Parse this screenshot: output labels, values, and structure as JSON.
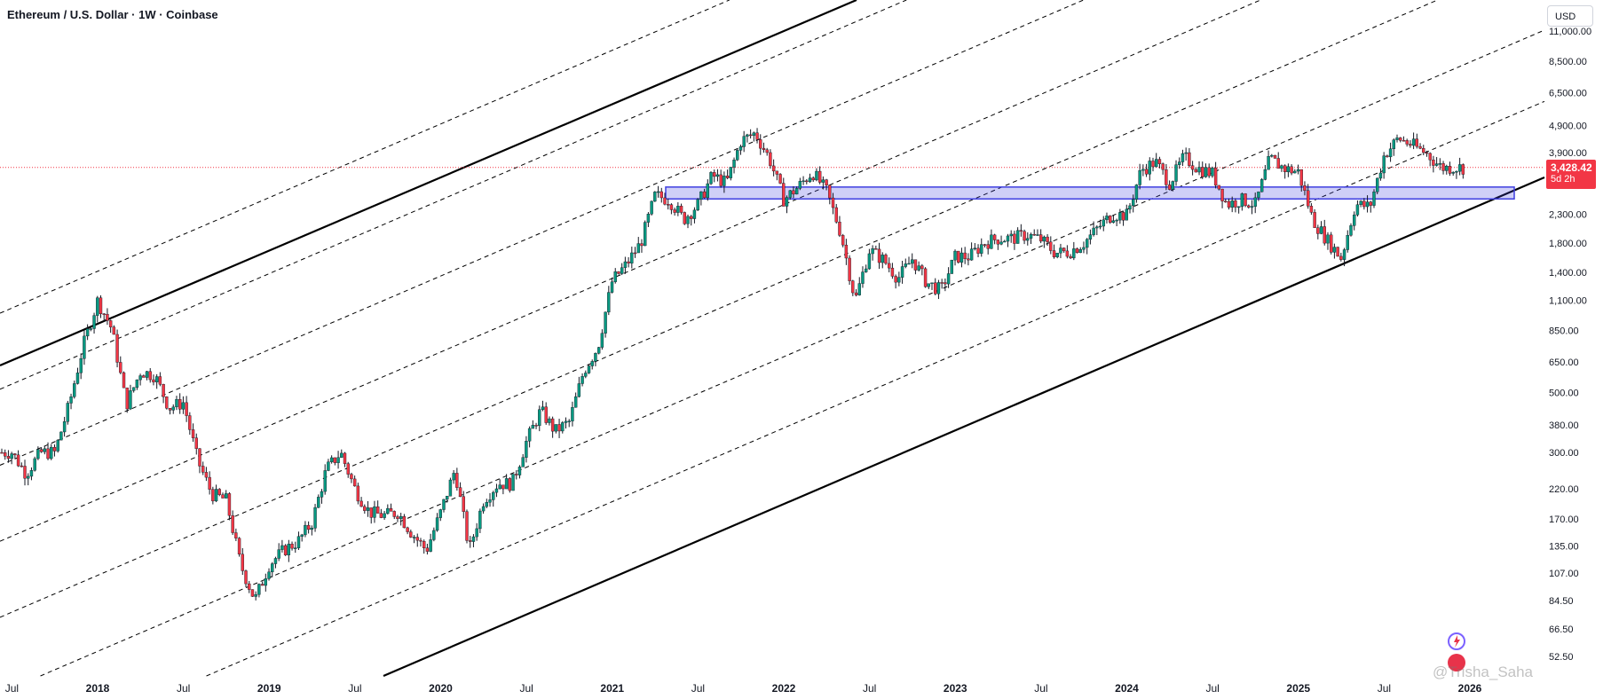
{
  "title": "Ethereum / U.S. Dollar · 1W · Coinbase",
  "currency_button": "USD",
  "price_label": {
    "value": "3,428.42",
    "countdown": "5d 2h"
  },
  "colors": {
    "up": "#089981",
    "down": "#f23645",
    "support_zone": "#3f3fe0",
    "channel": "#000000",
    "price_line": "#f23645"
  },
  "watermark": "@Trisha_Saha",
  "icons": [
    "sparkle-logo-icon",
    "flag-badge-icon"
  ],
  "chart_data": {
    "type": "candlestick",
    "scale": "log",
    "grid": false,
    "ylim": [
      46,
      14500
    ],
    "y_ticks": [
      "11,000.00",
      "8,500.00",
      "6,500.00",
      "4,900.00",
      "3,900.00",
      "2,300.00",
      "1,800.00",
      "1,400.00",
      "1,100.00",
      "850.00",
      "650.00",
      "500.00",
      "380.00",
      "300.00",
      "220.00",
      "170.00",
      "135.00",
      "107.00",
      "84.50",
      "66.50",
      "52.50"
    ],
    "x_ticks": [
      "Jul",
      "2018",
      "Jul",
      "2019",
      "Jul",
      "2020",
      "Jul",
      "2021",
      "Jul",
      "2022",
      "Jul",
      "2023",
      "Jul",
      "2024",
      "Jul",
      "2025",
      "Jul",
      "2026"
    ],
    "last_price": 3428.42,
    "support_zone": {
      "low": 2620,
      "high": 2900
    },
    "series": [
      {
        "type": "close_path",
        "points": [
          [
            "2017-07",
            300
          ],
          [
            "2017-08",
            250
          ],
          [
            "2017-09",
            300
          ],
          [
            "2017-10",
            300
          ],
          [
            "2017-11",
            450
          ],
          [
            "2017-12",
            750
          ],
          [
            "2018-01",
            1100
          ],
          [
            "2018-02",
            860
          ],
          [
            "2018-03",
            450
          ],
          [
            "2018-04",
            600
          ],
          [
            "2018-05",
            580
          ],
          [
            "2018-06",
            440
          ],
          [
            "2018-07",
            460
          ],
          [
            "2018-08",
            280
          ],
          [
            "2018-09",
            210
          ],
          [
            "2018-10",
            200
          ],
          [
            "2018-11",
            115
          ],
          [
            "2018-12",
            85
          ],
          [
            "2019-01",
            115
          ],
          [
            "2019-02",
            130
          ],
          [
            "2019-03",
            140
          ],
          [
            "2019-04",
            165
          ],
          [
            "2019-05",
            260
          ],
          [
            "2019-06",
            300
          ],
          [
            "2019-07",
            220
          ],
          [
            "2019-08",
            180
          ],
          [
            "2019-09",
            175
          ],
          [
            "2019-10",
            180
          ],
          [
            "2019-11",
            150
          ],
          [
            "2019-12",
            130
          ],
          [
            "2020-01",
            180
          ],
          [
            "2020-02",
            260
          ],
          [
            "2020-03",
            130
          ],
          [
            "2020-04",
            200
          ],
          [
            "2020-05",
            230
          ],
          [
            "2020-06",
            230
          ],
          [
            "2020-07",
            330
          ],
          [
            "2020-08",
            430
          ],
          [
            "2020-09",
            360
          ],
          [
            "2020-10",
            390
          ],
          [
            "2020-11",
            600
          ],
          [
            "2020-12",
            740
          ],
          [
            "2021-01",
            1300
          ],
          [
            "2021-02",
            1500
          ],
          [
            "2021-03",
            1800
          ],
          [
            "2021-04",
            2700
          ],
          [
            "2021-05",
            2600
          ],
          [
            "2021-06",
            2200
          ],
          [
            "2021-07",
            2500
          ],
          [
            "2021-08",
            3200
          ],
          [
            "2021-09",
            3000
          ],
          [
            "2021-10",
            4300
          ],
          [
            "2021-11",
            4600
          ],
          [
            "2021-12",
            3700
          ],
          [
            "2022-01",
            2600
          ],
          [
            "2022-02",
            2900
          ],
          [
            "2022-03",
            3300
          ],
          [
            "2022-04",
            2800
          ],
          [
            "2022-05",
            1950
          ],
          [
            "2022-06",
            1100
          ],
          [
            "2022-07",
            1700
          ],
          [
            "2022-08",
            1550
          ],
          [
            "2022-09",
            1330
          ],
          [
            "2022-10",
            1570
          ],
          [
            "2022-11",
            1280
          ],
          [
            "2022-12",
            1200
          ],
          [
            "2023-01",
            1600
          ],
          [
            "2023-02",
            1600
          ],
          [
            "2023-03",
            1800
          ],
          [
            "2023-04",
            1870
          ],
          [
            "2023-05",
            1870
          ],
          [
            "2023-06",
            1930
          ],
          [
            "2023-07",
            1850
          ],
          [
            "2023-08",
            1650
          ],
          [
            "2023-09",
            1670
          ],
          [
            "2023-10",
            1800
          ],
          [
            "2023-11",
            2050
          ],
          [
            "2023-12",
            2300
          ],
          [
            "2024-01",
            2280
          ],
          [
            "2024-02",
            3350
          ],
          [
            "2024-03",
            3600
          ],
          [
            "2024-04",
            3000
          ],
          [
            "2024-05",
            3750
          ],
          [
            "2024-06",
            3400
          ],
          [
            "2024-07",
            3250
          ],
          [
            "2024-08",
            2500
          ],
          [
            "2024-09",
            2600
          ],
          [
            "2024-10",
            2500
          ],
          [
            "2024-11",
            3700
          ],
          [
            "2024-12",
            3400
          ],
          [
            "2025-01",
            3300
          ],
          [
            "2025-02",
            2200
          ],
          [
            "2025-03",
            1850
          ],
          [
            "2025-04",
            1580
          ],
          [
            "2025-05",
            2500
          ],
          [
            "2025-06",
            2450
          ],
          [
            "2025-07",
            3800
          ],
          [
            "2025-08",
            4400
          ],
          [
            "2025-09",
            4150
          ],
          [
            "2025-10",
            3850
          ],
          [
            "2025-11",
            3428
          ]
        ]
      }
    ]
  }
}
